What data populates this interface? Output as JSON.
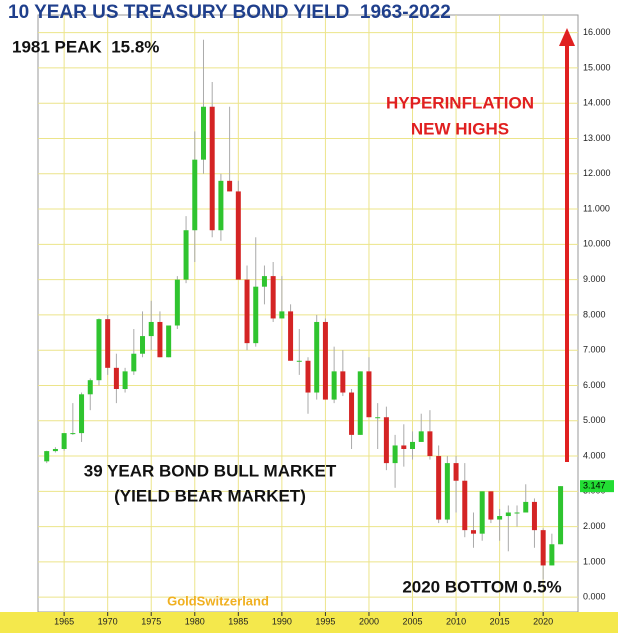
{
  "chart_data": {
    "type": "candlestick",
    "title": "10 YEAR US TREASURY BOND YIELD  1963-2022",
    "x": [
      1963,
      1964,
      1965,
      1966,
      1967,
      1968,
      1969,
      1970,
      1971,
      1972,
      1973,
      1974,
      1975,
      1976,
      1977,
      1978,
      1979,
      1980,
      1981,
      1982,
      1983,
      1984,
      1985,
      1986,
      1987,
      1988,
      1989,
      1990,
      1991,
      1992,
      1993,
      1994,
      1995,
      1996,
      1997,
      1998,
      1999,
      2000,
      2001,
      2002,
      2003,
      2004,
      2005,
      2006,
      2007,
      2008,
      2009,
      2010,
      2011,
      2012,
      2013,
      2014,
      2015,
      2016,
      2017,
      2018,
      2019,
      2020,
      2021,
      2022
    ],
    "open": [
      3.85,
      4.14,
      4.2,
      4.65,
      4.65,
      5.75,
      6.15,
      7.88,
      6.5,
      5.9,
      6.4,
      6.9,
      7.4,
      7.8,
      6.8,
      7.7,
      9.0,
      10.4,
      12.4,
      13.9,
      10.4,
      11.8,
      11.5,
      9.0,
      7.2,
      8.8,
      9.1,
      7.9,
      8.1,
      6.7,
      6.7,
      5.8,
      7.8,
      5.6,
      6.4,
      5.8,
      4.6,
      6.4,
      5.1,
      5.1,
      3.8,
      4.3,
      4.2,
      4.4,
      4.7,
      4.0,
      2.2,
      3.8,
      3.3,
      1.9,
      1.8,
      3.0,
      2.2,
      2.3,
      2.4,
      2.4,
      2.7,
      1.9,
      0.9,
      1.5
    ],
    "high": [
      4.15,
      4.25,
      4.65,
      5.5,
      5.8,
      6.2,
      7.9,
      8.0,
      6.9,
      6.5,
      7.6,
      8.1,
      8.4,
      8.1,
      7.7,
      9.1,
      10.8,
      13.2,
      15.8,
      14.6,
      12.0,
      13.9,
      11.8,
      9.4,
      10.2,
      9.4,
      9.5,
      9.1,
      8.3,
      7.6,
      6.8,
      8.0,
      7.9,
      7.1,
      7.0,
      5.9,
      6.4,
      6.8,
      5.5,
      5.4,
      4.6,
      4.9,
      4.7,
      5.2,
      5.3,
      4.3,
      4.0,
      4.0,
      3.8,
      2.4,
      3.0,
      3.0,
      2.5,
      2.6,
      2.6,
      3.2,
      2.8,
      1.95,
      1.8,
      3.147
    ],
    "low": [
      3.8,
      4.1,
      4.15,
      4.6,
      4.4,
      5.3,
      6.0,
      6.3,
      5.5,
      5.8,
      6.3,
      6.8,
      7.0,
      6.8,
      6.8,
      7.6,
      8.9,
      9.5,
      12.0,
      10.2,
      10.1,
      11.5,
      9.0,
      7.0,
      7.1,
      8.3,
      7.8,
      7.9,
      6.7,
      6.3,
      5.2,
      5.6,
      5.6,
      5.5,
      5.7,
      4.2,
      4.6,
      5.1,
      4.2,
      3.6,
      3.1,
      3.7,
      3.9,
      4.4,
      3.9,
      2.1,
      2.1,
      2.4,
      1.7,
      1.4,
      1.6,
      2.1,
      1.6,
      1.3,
      2.0,
      2.4,
      1.4,
      0.5,
      0.9,
      1.5
    ],
    "close": [
      4.14,
      4.2,
      4.65,
      4.65,
      5.75,
      6.15,
      7.88,
      6.5,
      5.9,
      6.4,
      6.9,
      7.4,
      7.8,
      6.8,
      7.7,
      9.0,
      10.4,
      12.4,
      13.9,
      10.4,
      11.8,
      11.5,
      9.0,
      7.2,
      8.8,
      9.1,
      7.9,
      8.1,
      6.7,
      6.7,
      5.8,
      7.8,
      5.6,
      6.4,
      5.8,
      4.6,
      6.4,
      5.1,
      5.1,
      3.8,
      4.3,
      4.2,
      4.4,
      4.7,
      4.0,
      2.2,
      3.8,
      3.3,
      1.9,
      1.8,
      3.0,
      2.2,
      2.3,
      2.4,
      2.4,
      2.7,
      1.9,
      0.9,
      1.5,
      3.147
    ],
    "up_color": "#2fc42f",
    "down_color": "#d42424",
    "xlim": [
      1962,
      2024
    ],
    "xticks": [
      1965,
      1970,
      1975,
      1980,
      1985,
      1990,
      1995,
      2000,
      2005,
      2010,
      2015,
      2020
    ],
    "ylim": [
      -0.42,
      16.5
    ],
    "yticks": [
      {
        "value": 0,
        "label": "0.000"
      },
      {
        "value": 1,
        "label": "1.000"
      },
      {
        "value": 2,
        "label": "2.000"
      },
      {
        "value": 3,
        "label": "3.000"
      },
      {
        "value": 4,
        "label": "4.000"
      },
      {
        "value": 5,
        "label": "5.000"
      },
      {
        "value": 6,
        "label": "6.000"
      },
      {
        "value": 7,
        "label": "7.000"
      },
      {
        "value": 8,
        "label": "8.000"
      },
      {
        "value": 9,
        "label": "9.000"
      },
      {
        "value": 10,
        "label": "10.000"
      },
      {
        "value": 11,
        "label": "11.000"
      },
      {
        "value": 12,
        "label": "12.000"
      },
      {
        "value": 13,
        "label": "13.000"
      },
      {
        "value": 14,
        "label": "14.000"
      },
      {
        "value": 15,
        "label": "15.000"
      },
      {
        "value": 16,
        "label": "16.000"
      }
    ],
    "last_price": 3.147,
    "grid": true,
    "annotations": [
      "1981 PEAK  15.8%",
      "HYPERINFLATION",
      "NEW HIGHS",
      "39 YEAR BOND BULL MARKET",
      "(YIELD BEAR MARKET)",
      "2020 BOTTOM 0.5%",
      "GoldSwitzerland"
    ]
  }
}
